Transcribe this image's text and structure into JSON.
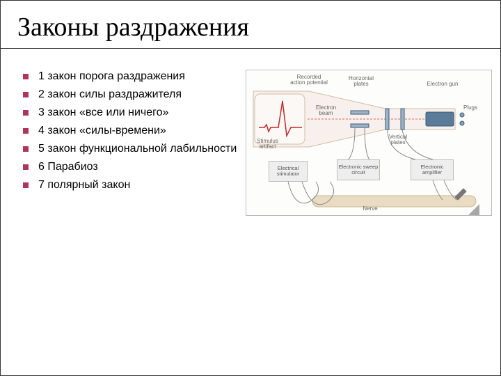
{
  "title": "Законы раздражения",
  "bullets": [
    "1 закон порога раздражения",
    "2 закон силы раздражителя",
    "3 закон «все или ничего»",
    "4 закон «силы-времени»",
    "5 закон функциональной лабильности",
    "6 Парабиоз",
    "7 полярный закон"
  ],
  "diagram": {
    "labels": {
      "recorded": "Recorded\naction potential",
      "horizontal": "Horizontal\nplates",
      "electron_gun": "Electron gun",
      "electron_beam": "Electron\nbeam",
      "plugs": "Plugs",
      "stimulus": "Stimulus\nartifact",
      "vertical": "Vertical\nplates",
      "nerve": "Nerve"
    },
    "boxes": {
      "sweep": "Electronic\nsweep circuit",
      "amplifier": "Electronic\namplifier",
      "stimulator": "Electrical\nstimulator"
    },
    "colors": {
      "crt_fill": "#f7f0ec",
      "crt_stroke": "#d0bca8",
      "screen_fill": "#fbf8f5",
      "ap_stroke": "#c22b2b",
      "beam_stroke": "#d66",
      "beam_dash": "3 2",
      "gun_fill": "#5b7c99",
      "gun_stroke": "#3a5a77",
      "plate_fill": "#9fb3c8",
      "plugs_fill": "#8aa3bd",
      "wire_stroke": "#888",
      "nerve_fill": "#e9dcc3",
      "nerve_stroke": "#c9b98f",
      "electrode_stroke": "#777",
      "corner_fill": "#a8a8a8"
    }
  }
}
